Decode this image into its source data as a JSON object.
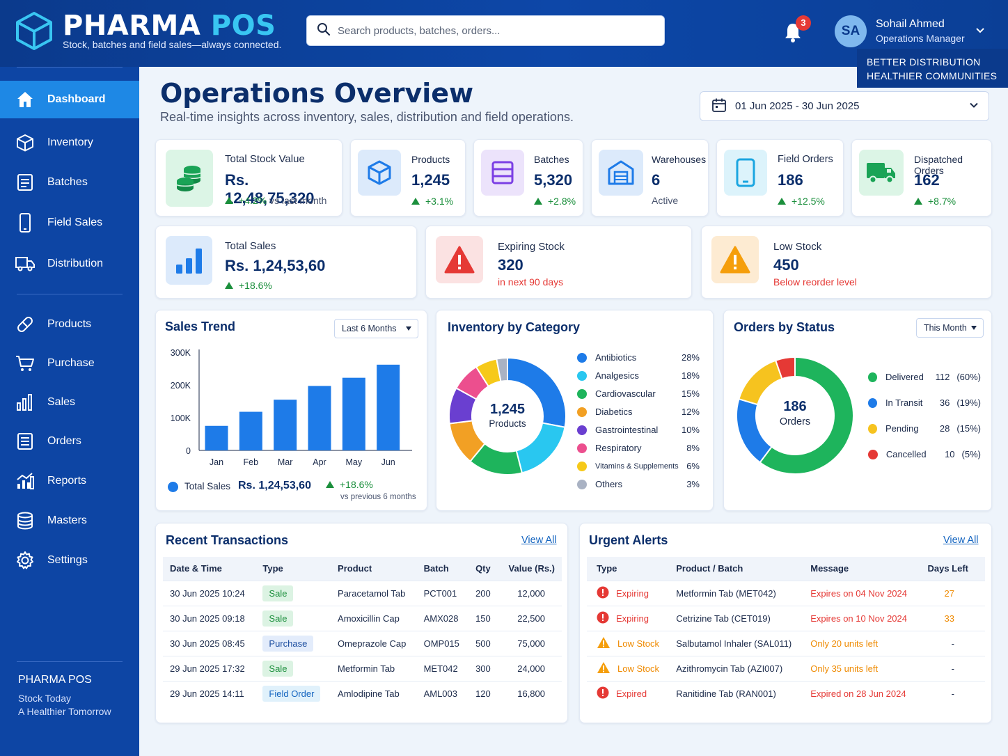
{
  "app": {
    "brand_main": "PHARMA",
    "brand_accent": "POS",
    "tagline": "Stock, batches and field sales—always connected.",
    "search_placeholder": "Search products, batches, orders...",
    "notifications_count": "3",
    "user_initials": "SA",
    "user_name": "Sohail Ahmed",
    "user_role": "Operations Manager",
    "promo_line1": "BETTER DISTRIBUTION",
    "promo_line2": "HEALTHIER COMMUNITIES"
  },
  "sidebar": {
    "items": [
      {
        "label": "Dashboard",
        "icon": "home-icon",
        "active": true
      },
      {
        "label": "Inventory",
        "icon": "box-icon"
      },
      {
        "label": "Batches",
        "icon": "document-icon"
      },
      {
        "label": "Field Sales",
        "icon": "mobile-icon"
      },
      {
        "label": "Distribution",
        "icon": "truck-icon"
      },
      {
        "label": "Products",
        "icon": "pill-icon"
      },
      {
        "label": "Purchase",
        "icon": "cart-icon"
      },
      {
        "label": "Sales",
        "icon": "bar-chart-icon"
      },
      {
        "label": "Orders",
        "icon": "clipboard-icon"
      },
      {
        "label": "Reports",
        "icon": "reports-icon"
      },
      {
        "label": "Masters",
        "icon": "database-icon"
      },
      {
        "label": "Settings",
        "icon": "gear-icon"
      }
    ],
    "footer_title": "PHARMA POS",
    "footer_line1": "Stock Today",
    "footer_line2": "A Healthier Tomorrow"
  },
  "main": {
    "title": "Operations Overview",
    "subtitle": "Real-time insights across inventory, sales, distribution and field operations.",
    "date_range": "01 Jun 2025 - 30 Jun 2025"
  },
  "kpis": {
    "stock_value": {
      "label": "Total Stock Value",
      "value": "Rs. 12,48,75,320",
      "trend": "+4.2%",
      "trend_suffix": "vs last month"
    },
    "products": {
      "label": "Products",
      "value": "1,245",
      "trend": "+3.1%"
    },
    "batches": {
      "label": "Batches",
      "value": "5,320",
      "trend": "+2.8%"
    },
    "warehouses": {
      "label": "Warehouses",
      "value": "6",
      "sub": "Active"
    },
    "field_orders": {
      "label": "Field Orders",
      "value": "186",
      "trend": "+12.5%"
    },
    "dispatched": {
      "label": "Dispatched Orders",
      "value": "162",
      "trend": "+8.7%"
    },
    "total_sales": {
      "label": "Total Sales",
      "value": "Rs. 1,24,53,60",
      "trend": "+18.6%"
    },
    "expiring": {
      "label": "Expiring Stock",
      "value": "320",
      "sub": "in next 90 days"
    },
    "low_stock": {
      "label": "Low Stock",
      "value": "450",
      "sub": "Below reorder level"
    }
  },
  "sales_trend": {
    "title": "Sales Trend",
    "period": "Last 6 Months",
    "legend": "Total Sales",
    "total": "Rs. 1,24,53,60",
    "change": "+18.6%",
    "change_note": "vs previous 6 months"
  },
  "inventory_category": {
    "title": "Inventory by Category",
    "center_value": "1,245",
    "center_label": "Products"
  },
  "orders_status": {
    "title": "Orders by Status",
    "period": "This Month",
    "center_value": "186",
    "center_label": "Orders"
  },
  "chart_data": [
    {
      "type": "bar",
      "title": "Sales Trend",
      "categories": [
        "Jan",
        "Feb",
        "Mar",
        "Apr",
        "May",
        "Jun"
      ],
      "series": [
        {
          "name": "Total Sales",
          "values": [
            75000,
            118000,
            155000,
            197000,
            222000,
            262000
          ]
        }
      ],
      "ylim": [
        0,
        300000
      ],
      "yticks": [
        "0",
        "100K",
        "200K",
        "300K"
      ],
      "color": "#1e7be8"
    },
    {
      "type": "pie",
      "title": "Inventory by Category",
      "categories": [
        "Antibiotics",
        "Analgesics",
        "Cardiovascular",
        "Diabetics",
        "Gastrointestinal",
        "Respiratory",
        "Vitamins & Supplements",
        "Others"
      ],
      "values": [
        28,
        18,
        15,
        12,
        10,
        8,
        6,
        3
      ],
      "labels": [
        "28%",
        "18%",
        "15%",
        "12%",
        "10%",
        "8%",
        "6%",
        "3%"
      ],
      "colors": [
        "#1e7be8",
        "#29c7f0",
        "#1eb45c",
        "#f2a024",
        "#6a3fd0",
        "#ec4f8e",
        "#f6c919",
        "#a9b2c3"
      ]
    },
    {
      "type": "pie",
      "title": "Orders by Status",
      "categories": [
        "Delivered",
        "In Transit",
        "Pending",
        "Cancelled"
      ],
      "values": [
        112,
        36,
        28,
        10
      ],
      "labels": [
        "(60%)",
        "(19%)",
        "(15%)",
        "(5%)"
      ],
      "colors": [
        "#1eb45c",
        "#1e7be8",
        "#f6c31f",
        "#e53935"
      ]
    }
  ],
  "transactions": {
    "title": "Recent Transactions",
    "view_all": "View All",
    "headers": [
      "Date & Time",
      "Type",
      "Product",
      "Batch",
      "Qty",
      "Value (Rs.)"
    ],
    "rows": [
      {
        "date": "30 Jun 2025 10:24",
        "type": "Sale",
        "kind": "sale",
        "product": "Paracetamol Tab",
        "batch": "PCT001",
        "qty": "200",
        "value": "12,000"
      },
      {
        "date": "30 Jun 2025 09:18",
        "type": "Sale",
        "kind": "sale",
        "product": "Amoxicillin Cap",
        "batch": "AMX028",
        "qty": "150",
        "value": "22,500"
      },
      {
        "date": "30 Jun 2025 08:45",
        "type": "Purchase",
        "kind": "purchase",
        "product": "Omeprazole Cap",
        "batch": "OMP015",
        "qty": "500",
        "value": "75,000"
      },
      {
        "date": "29 Jun 2025 17:32",
        "type": "Sale",
        "kind": "sale",
        "product": "Metformin Tab",
        "batch": "MET042",
        "qty": "300",
        "value": "24,000"
      },
      {
        "date": "29 Jun 2025 14:11",
        "type": "Field Order",
        "kind": "field",
        "product": "Amlodipine Tab",
        "batch": "AML003",
        "qty": "120",
        "value": "16,800"
      }
    ]
  },
  "alerts": {
    "title": "Urgent Alerts",
    "view_all": "View All",
    "headers": [
      "Type",
      "Product / Batch",
      "Message",
      "Days Left"
    ],
    "rows": [
      {
        "type": "Expiring",
        "level": "red",
        "product": "Metformin Tab (MET042)",
        "message": "Expires on 04 Nov 2024",
        "days": "27"
      },
      {
        "type": "Expiring",
        "level": "red",
        "product": "Cetrizine Tab (CET019)",
        "message": "Expires on 10 Nov 2024",
        "days": "33"
      },
      {
        "type": "Low Stock",
        "level": "orange",
        "product": "Salbutamol Inhaler (SAL011)",
        "message": "Only 20 units left",
        "days": "-"
      },
      {
        "type": "Low Stock",
        "level": "orange",
        "product": "Azithromycin Tab (AZI007)",
        "message": "Only 35 units left",
        "days": "-"
      },
      {
        "type": "Expired",
        "level": "red",
        "product": "Ranitidine Tab (RAN001)",
        "message": "Expired on 28 Jun 2024",
        "days": "-"
      }
    ]
  }
}
